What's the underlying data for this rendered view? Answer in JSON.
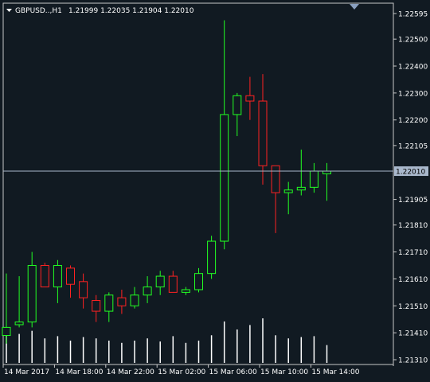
{
  "header": {
    "symbol": "GBPUSD..,H1",
    "quote": "1.21999 1.22035 1.21904 1.22010",
    "menu_icon": "triangle-down-icon",
    "scroll_icon": "shift-marker-icon"
  },
  "colors": {
    "background": "#111a22",
    "frame": "#c8c8c8",
    "bull": "#22ff22",
    "bear": "#ff2222",
    "text": "#ffffff",
    "price_line": "#a9b8cc",
    "volume": "#ffffff"
  },
  "chart_data": {
    "type": "candlestick",
    "timeframe": "H1",
    "ylim": [
      1.2131,
      1.22595
    ],
    "price_ticks": [
      "1.22595",
      "1.22500",
      "1.22400",
      "1.22300",
      "1.22200",
      "1.22105",
      "1.22010",
      "1.21905",
      "1.21810",
      "1.21710",
      "1.21610",
      "1.21510",
      "1.21410",
      "1.21310"
    ],
    "current_price": "1.22010",
    "time_labels": [
      "14 Mar 2017",
      "14 Mar 18:00",
      "14 Mar 22:00",
      "15 Mar 02:00",
      "15 Mar 06:00",
      "15 Mar 10:00",
      "15 Mar 14:00"
    ],
    "time_label_bar_index": [
      0,
      4,
      8,
      12,
      16,
      20,
      24
    ],
    "candles": [
      {
        "o": 1.214,
        "h": 1.2163,
        "l": 1.2137,
        "c": 1.2143
      },
      {
        "o": 1.2144,
        "h": 1.2162,
        "l": 1.2143,
        "c": 1.2145
      },
      {
        "o": 1.2145,
        "h": 1.2171,
        "l": 1.2143,
        "c": 1.2166
      },
      {
        "o": 1.2166,
        "h": 1.2167,
        "l": 1.2158,
        "c": 1.2158
      },
      {
        "o": 1.2158,
        "h": 1.2168,
        "l": 1.2152,
        "c": 1.2166
      },
      {
        "o": 1.2165,
        "h": 1.2166,
        "l": 1.2154,
        "c": 1.2159
      },
      {
        "o": 1.216,
        "h": 1.2163,
        "l": 1.215,
        "c": 1.2154
      },
      {
        "o": 1.2153,
        "h": 1.2155,
        "l": 1.2145,
        "c": 1.2149
      },
      {
        "o": 1.2149,
        "h": 1.2156,
        "l": 1.2145,
        "c": 1.2155
      },
      {
        "o": 1.2154,
        "h": 1.2157,
        "l": 1.2148,
        "c": 1.2151
      },
      {
        "o": 1.2151,
        "h": 1.2158,
        "l": 1.215,
        "c": 1.2155
      },
      {
        "o": 1.2155,
        "h": 1.2162,
        "l": 1.2152,
        "c": 1.2158
      },
      {
        "o": 1.2158,
        "h": 1.2164,
        "l": 1.2155,
        "c": 1.2162
      },
      {
        "o": 1.2162,
        "h": 1.2164,
        "l": 1.2156,
        "c": 1.2156
      },
      {
        "o": 1.2156,
        "h": 1.2158,
        "l": 1.2155,
        "c": 1.2157
      },
      {
        "o": 1.2157,
        "h": 1.2165,
        "l": 1.2156,
        "c": 1.2163
      },
      {
        "o": 1.2163,
        "h": 1.2177,
        "l": 1.2161,
        "c": 1.2175
      },
      {
        "o": 1.2175,
        "h": 1.2257,
        "l": 1.2172,
        "c": 1.2222
      },
      {
        "o": 1.2222,
        "h": 1.223,
        "l": 1.2214,
        "c": 1.2229
      },
      {
        "o": 1.2229,
        "h": 1.2236,
        "l": 1.222,
        "c": 1.2227
      },
      {
        "o": 1.2227,
        "h": 1.2237,
        "l": 1.2196,
        "c": 1.2203
      },
      {
        "o": 1.2203,
        "h": 1.2203,
        "l": 1.2178,
        "c": 1.2193
      },
      {
        "o": 1.2193,
        "h": 1.2197,
        "l": 1.2185,
        "c": 1.2194
      },
      {
        "o": 1.2194,
        "h": 1.2209,
        "l": 1.2192,
        "c": 1.2195
      },
      {
        "o": 1.2195,
        "h": 1.2204,
        "l": 1.2193,
        "c": 1.2201
      },
      {
        "o": 1.22,
        "h": 1.2204,
        "l": 1.219,
        "c": 1.2201
      }
    ],
    "volumes": [
      0.8,
      0.65,
      0.72,
      0.55,
      0.6,
      0.5,
      0.58,
      0.55,
      0.5,
      0.45,
      0.5,
      0.55,
      0.48,
      0.6,
      0.45,
      0.5,
      0.62,
      0.93,
      0.75,
      0.85,
      1.0,
      0.62,
      0.55,
      0.58,
      0.6,
      0.4
    ]
  }
}
